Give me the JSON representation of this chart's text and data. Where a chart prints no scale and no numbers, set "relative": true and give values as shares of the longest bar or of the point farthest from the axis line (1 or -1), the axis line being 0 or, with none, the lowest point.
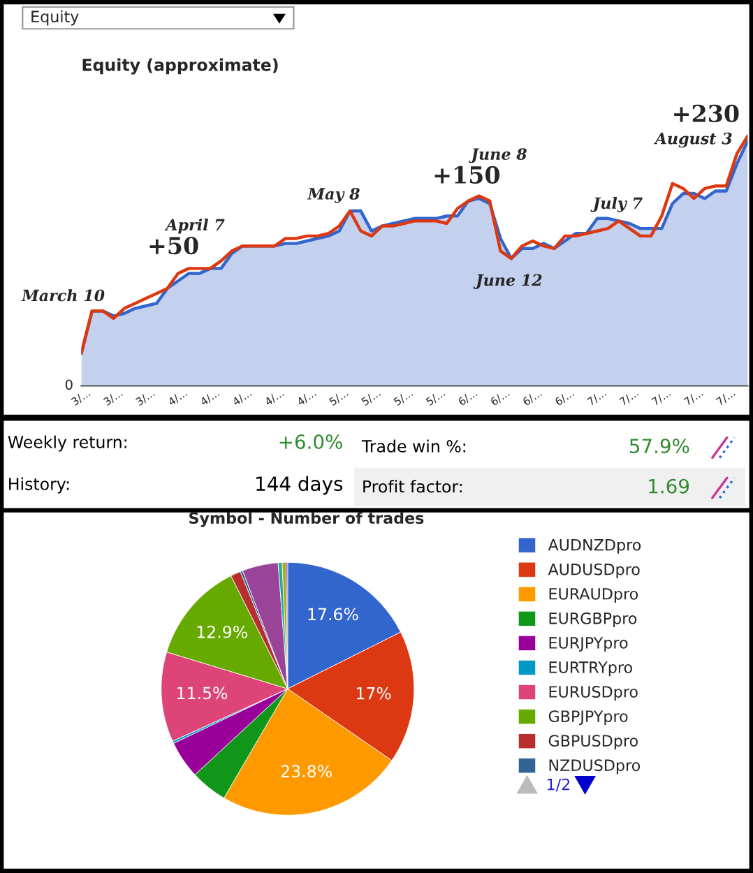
{
  "chart_data": [
    {
      "type": "line",
      "title": "Equity (approximate)",
      "relative": true,
      "tick_labels": "x",
      "categories": [
        "3/...",
        null,
        null,
        "3/...",
        null,
        null,
        "3/...",
        null,
        null,
        "4/...",
        null,
        null,
        "4/...",
        null,
        null,
        "4/...",
        null,
        null,
        "4/...",
        null,
        null,
        "4/...",
        null,
        null,
        "5/...",
        null,
        null,
        "5/...",
        null,
        null,
        "5/...",
        null,
        null,
        "5/...",
        null,
        null,
        "6/...",
        null,
        null,
        "6/...",
        null,
        null,
        "6/...",
        null,
        null,
        "6/...",
        null,
        null,
        "7/...",
        null,
        null,
        "7/...",
        null,
        null,
        "7/...",
        null,
        null,
        "7/...",
        null,
        null,
        "7/...",
        null,
        null
      ],
      "annotations": [
        "Equity",
        "0",
        "March 10",
        "+50",
        "April 7",
        "May 8",
        "+150",
        "June 8",
        "June 12",
        "July 7",
        "+230",
        "August 3"
      ],
      "series": [
        {
          "type": "area",
          "color": "#3366cc",
          "values": [
            0.13,
            0.3,
            0.3,
            0.28,
            0.29,
            0.31,
            0.32,
            0.33,
            0.39,
            0.42,
            0.45,
            0.45,
            0.47,
            0.47,
            0.53,
            0.56,
            0.56,
            0.56,
            0.56,
            0.57,
            0.57,
            0.58,
            0.59,
            0.6,
            0.62,
            0.7,
            0.7,
            0.62,
            0.64,
            0.65,
            0.66,
            0.67,
            0.67,
            0.67,
            0.68,
            0.68,
            0.74,
            0.75,
            0.73,
            0.59,
            0.51,
            0.55,
            0.55,
            0.57,
            0.55,
            0.58,
            0.61,
            0.61,
            0.67,
            0.67,
            0.66,
            0.65,
            0.63,
            0.63,
            0.63,
            0.73,
            0.77,
            0.77,
            0.75,
            0.78,
            0.78,
            0.89,
            0.98
          ]
        },
        {
          "type": "line",
          "color": "#dc3912",
          "values": [
            0.13,
            0.3,
            0.3,
            0.27,
            0.31,
            0.33,
            0.35,
            0.37,
            0.39,
            0.45,
            0.47,
            0.47,
            0.47,
            0.5,
            0.54,
            0.56,
            0.56,
            0.56,
            0.56,
            0.59,
            0.59,
            0.6,
            0.6,
            0.61,
            0.64,
            0.7,
            0.62,
            0.6,
            0.64,
            0.64,
            0.65,
            0.66,
            0.66,
            0.66,
            0.65,
            0.71,
            0.74,
            0.76,
            0.74,
            0.54,
            0.51,
            0.56,
            0.58,
            0.56,
            0.55,
            0.6,
            0.6,
            0.61,
            0.62,
            0.63,
            0.66,
            0.63,
            0.6,
            0.6,
            0.68,
            0.81,
            0.79,
            0.75,
            0.79,
            0.8,
            0.8,
            0.93,
            1.0
          ]
        }
      ]
    },
    {
      "type": "other",
      "annotations": [
        "Weekly return:",
        "+6.0%",
        "History:",
        "144 days",
        "Trade win %:",
        "57.9%",
        "Profit factor:",
        "1.69"
      ]
    },
    {
      "type": "pie",
      "title": "Symbol - Number of trades",
      "legend": "right",
      "categories": [
        "AUDNZDpro",
        "AUDUSDpro",
        "EURAUDpro",
        "EURGBPpro",
        "EURJPYpro",
        "EURTRYpro",
        "EURUSDpro",
        "GBPJPYpro",
        "GBPUSDpro",
        "NZDUSDpro",
        null,
        null,
        null,
        null
      ],
      "values": [
        17.6,
        17,
        23.8,
        4.7,
        4.8,
        0.3,
        11.5,
        12.9,
        1.3,
        0.3,
        4.6,
        0.5,
        0.5,
        0.2
      ],
      "colors": [
        "#3366cc",
        "#dc3912",
        "#ff9900",
        "#109618",
        "#990099",
        "#0099c6",
        "#dd4477",
        "#66aa00",
        "#b82e2e",
        "#316395",
        "#994499",
        "#22aa99",
        "#aaaa11",
        "#6633cc"
      ],
      "value_labels": [
        "17.6%",
        "17%",
        "23.8%",
        null,
        null,
        null,
        "11.5%",
        "12.9%",
        null,
        null,
        null,
        null,
        null,
        null
      ],
      "annotations": [
        "1/2"
      ]
    }
  ]
}
